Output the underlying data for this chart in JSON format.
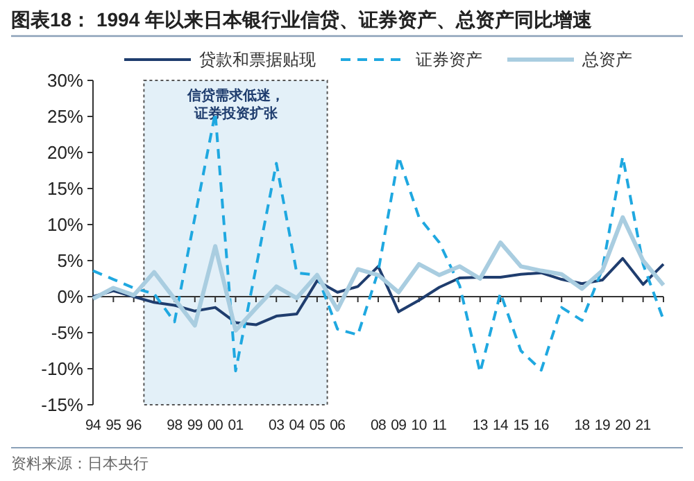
{
  "chart_data": {
    "type": "line",
    "title": "图表18： 1994 年以来日本银行业信贷、证券资产、总资产同比增速",
    "categories": [
      "94",
      "95",
      "96",
      null,
      "98",
      "99",
      "00",
      "01",
      null,
      "03",
      "04",
      "05",
      "06",
      null,
      "08",
      "09",
      "10",
      "11",
      null,
      "13",
      "14",
      "15",
      "16",
      null,
      "18",
      "19",
      "20",
      "21",
      null
    ],
    "series": [
      {
        "name": "贷款和票据贴现",
        "color": "#1f3d6e",
        "line_style": "solid",
        "values": [
          0,
          0.8,
          0,
          -0.8,
          -1.2,
          -2,
          -1.5,
          -3.6,
          -3.9,
          -2.7,
          -2.4,
          2.2,
          0.6,
          1.4,
          4.2,
          -2.1,
          -0.5,
          1.3,
          2.6,
          2.7,
          2.7,
          3.1,
          3.3,
          2.4,
          1.8,
          2.3,
          5.3,
          1.7,
          4.5
        ]
      },
      {
        "name": "证券资产",
        "color": "#1fa8e0",
        "line_style": "dashed",
        "values": [
          3.6,
          2.4,
          1.2,
          0.4,
          -3.5,
          11,
          25.5,
          -10.3,
          4,
          18.5,
          3.3,
          3,
          -4.5,
          -5.3,
          3.5,
          19.4,
          11,
          7.5,
          1.5,
          -10.5,
          0.5,
          -7.5,
          -10.2,
          -1.5,
          -3.3,
          3.8,
          19.4,
          4.5,
          -3.2
        ]
      },
      {
        "name": "总资产",
        "color": "#a9cde0",
        "line_style": "solid",
        "values": [
          -0.3,
          1.2,
          0.2,
          3.4,
          -0.3,
          -4,
          7,
          -4.7,
          -1.6,
          1.4,
          -0.2,
          3,
          -1.8,
          3.8,
          3,
          0.6,
          4.5,
          3,
          4.2,
          2.5,
          7.5,
          4.2,
          3.6,
          3.1,
          1.1,
          3.6,
          11,
          5,
          1.6
        ]
      }
    ],
    "ylim": [
      -15,
      30
    ],
    "yticks": [
      {
        "value": -15,
        "label": "-15%"
      },
      {
        "value": -10,
        "label": "-10%"
      },
      {
        "value": -5,
        "label": "-5%"
      },
      {
        "value": 0,
        "label": "0%"
      },
      {
        "value": 5,
        "label": "5%"
      },
      {
        "value": 10,
        "label": "10%"
      },
      {
        "value": 15,
        "label": "15%"
      },
      {
        "value": 20,
        "label": "20%"
      },
      {
        "value": 25,
        "label": "25%"
      },
      {
        "value": 30,
        "label": "30%"
      }
    ],
    "legend": "top",
    "bands": [
      {
        "axis": "x",
        "from": "96",
        "to": "05",
        "label": "信贷需求低迷，证券投资扩张",
        "color": "#e3f0f8"
      }
    ],
    "annotations": [
      "资料来源：日本央行"
    ]
  }
}
